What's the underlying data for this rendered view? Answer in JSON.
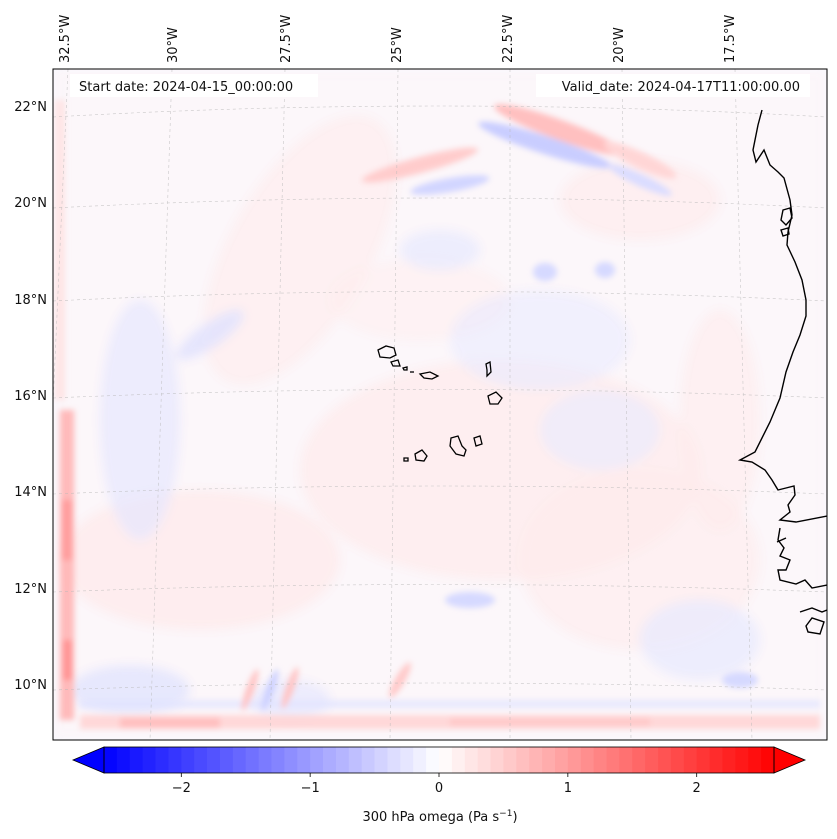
{
  "header": {
    "start_date": "Start date: 2024-04-15_00:00:00",
    "valid_date": "Valid_date: 2024-04-17T11:00:00.00"
  },
  "map": {
    "longitude_labels": [
      "32.5°W",
      "30°W",
      "27.5°W",
      "25°W",
      "22.5°W",
      "20°W",
      "17.5°W"
    ],
    "latitude_labels": [
      "22°N",
      "20°N",
      "18°N",
      "16°N",
      "14°N",
      "12°N",
      "10°N"
    ],
    "features": [
      "Cape Verde islands",
      "West African coastline"
    ],
    "gridlines": true
  },
  "colorbar": {
    "label": "300 hPa omega (Pa s",
    "label_sup": "−1",
    "label_close": ")",
    "ticks": [
      "−2",
      "−1",
      "0",
      "1",
      "2"
    ],
    "tick_values": [
      -2,
      -1,
      0,
      1,
      2
    ],
    "range": [
      -2.6,
      2.6
    ],
    "colormap": "bwr",
    "extend": "both",
    "color_min": "#0000ff",
    "color_mid": "#ffffff",
    "color_max": "#ff0000"
  }
}
